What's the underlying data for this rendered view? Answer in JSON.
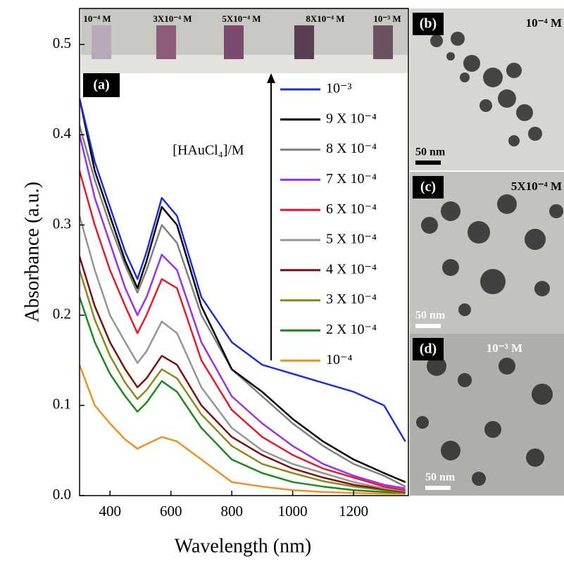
{
  "chart_data": {
    "type": "line",
    "panel_label": "(a)",
    "annotation": "[HAuCl₄]/M",
    "inset_labels": [
      "10⁻⁴ M",
      "3X10⁻⁴ M",
      "5X10⁻⁴ M",
      "8X10⁻⁴ M",
      "10⁻³ M"
    ],
    "x_label": "Wavelength (nm)",
    "y_label": "Absorbance (a.u.)",
    "xlim": [
      300,
      1380
    ],
    "xticks": [
      400,
      600,
      800,
      1000,
      1200
    ],
    "ylim": [
      0,
      0.54
    ],
    "yticks": [
      {
        "value": 0,
        "label": "0.0"
      },
      0.1,
      0.2,
      0.3,
      0.4,
      0.5
    ],
    "x": [
      300,
      350,
      400,
      450,
      490,
      520,
      570,
      620,
      700,
      800,
      900,
      1000,
      1100,
      1200,
      1300,
      1370
    ],
    "series": [
      {
        "name": "10⁻³",
        "color": "#1f2fd8",
        "values": [
          0.44,
          0.37,
          0.32,
          0.27,
          0.24,
          0.27,
          0.33,
          0.31,
          0.22,
          0.17,
          0.145,
          0.135,
          0.125,
          0.115,
          0.1,
          0.06
        ]
      },
      {
        "name": "9 X 10⁻⁴",
        "color": "#000000",
        "values": [
          0.44,
          0.36,
          0.31,
          0.26,
          0.23,
          0.26,
          0.32,
          0.3,
          0.21,
          0.14,
          0.115,
          0.085,
          0.06,
          0.04,
          0.025,
          0.015
        ]
      },
      {
        "name": "8 X 10⁻⁴",
        "color": "#7f7f7f",
        "values": [
          0.41,
          0.35,
          0.3,
          0.255,
          0.225,
          0.25,
          0.3,
          0.28,
          0.2,
          0.14,
          0.11,
          0.08,
          0.055,
          0.035,
          0.022,
          0.01
        ]
      },
      {
        "name": "7 X 10⁻⁴",
        "color": "#9b30f0",
        "values": [
          0.4,
          0.33,
          0.28,
          0.23,
          0.2,
          0.22,
          0.267,
          0.25,
          0.17,
          0.11,
          0.08,
          0.055,
          0.035,
          0.022,
          0.012,
          0.008
        ]
      },
      {
        "name": "6 X 10⁻⁴",
        "color": "#e8192c",
        "values": [
          0.36,
          0.3,
          0.25,
          0.21,
          0.18,
          0.2,
          0.24,
          0.23,
          0.15,
          0.095,
          0.065,
          0.045,
          0.03,
          0.02,
          0.01,
          0.006
        ]
      },
      {
        "name": "5 X 10⁻⁴",
        "color": "#959595",
        "values": [
          0.31,
          0.25,
          0.2,
          0.17,
          0.147,
          0.16,
          0.193,
          0.18,
          0.12,
          0.075,
          0.05,
          0.035,
          0.025,
          0.015,
          0.008,
          0.005
        ]
      },
      {
        "name": "4 X 10⁻⁴",
        "color": "#7a1010",
        "values": [
          0.265,
          0.21,
          0.17,
          0.14,
          0.12,
          0.13,
          0.155,
          0.145,
          0.1,
          0.065,
          0.045,
          0.03,
          0.02,
          0.012,
          0.007,
          0.004
        ]
      },
      {
        "name": "3 X 10⁻⁴",
        "color": "#8a8a1a",
        "values": [
          0.25,
          0.195,
          0.155,
          0.125,
          0.107,
          0.117,
          0.14,
          0.13,
          0.09,
          0.055,
          0.035,
          0.025,
          0.016,
          0.01,
          0.006,
          0.003
        ]
      },
      {
        "name": "2 X 10⁻⁴",
        "color": "#1a8a1a",
        "values": [
          0.22,
          0.17,
          0.135,
          0.11,
          0.093,
          0.103,
          0.127,
          0.115,
          0.075,
          0.04,
          0.025,
          0.015,
          0.01,
          0.006,
          0.004,
          0.003
        ]
      },
      {
        "name": "10⁻⁴",
        "color": "#f09020",
        "values": [
          0.145,
          0.1,
          0.08,
          0.062,
          0.052,
          0.057,
          0.065,
          0.06,
          0.04,
          0.015,
          0.01,
          0.006,
          0.004,
          0.003,
          0.002,
          0.002
        ]
      }
    ]
  },
  "images": [
    {
      "panel": "(b)",
      "label": "10⁻⁴ M",
      "scale": "50 nm"
    },
    {
      "panel": "(c)",
      "label": "5X10⁻⁴ M",
      "scale": "50 nm"
    },
    {
      "panel": "(d)",
      "label": "10⁻³ M",
      "scale": "50 nm"
    }
  ]
}
